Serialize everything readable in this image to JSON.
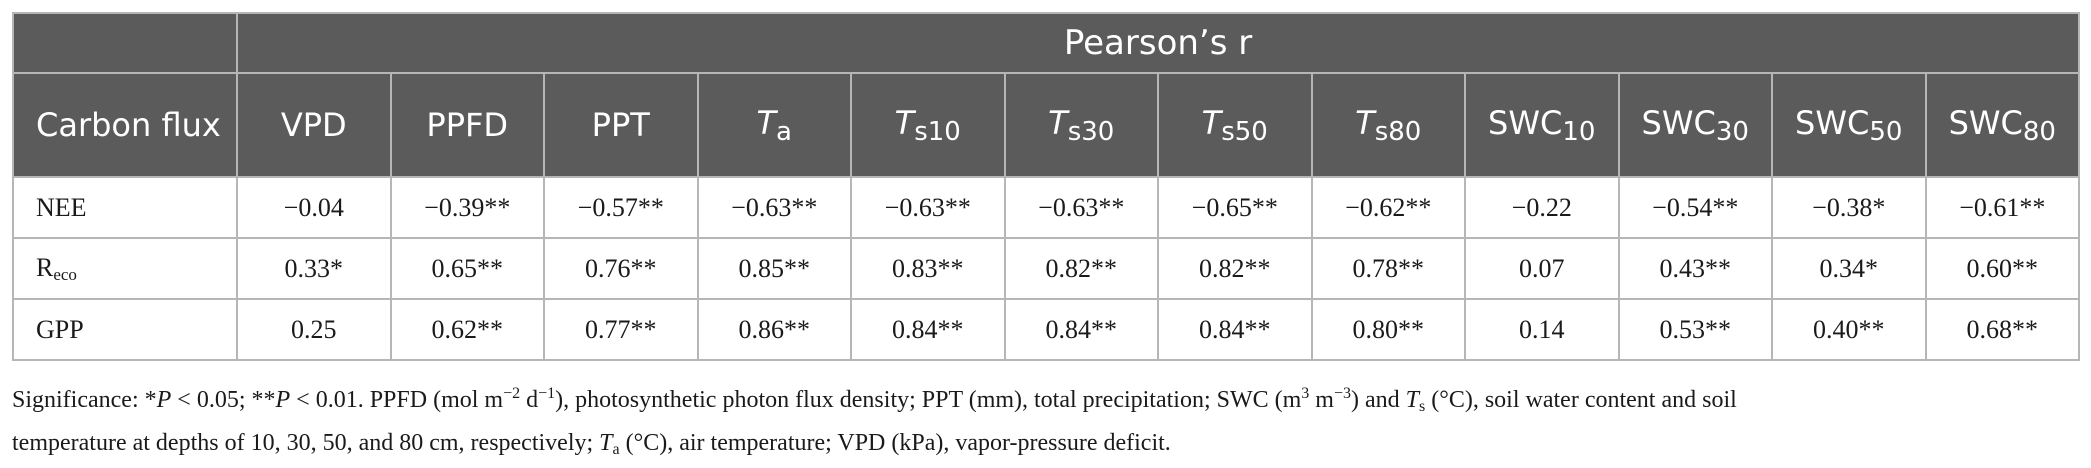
{
  "table": {
    "group_header": "Pearson’s r",
    "row_header": "Carbon flux",
    "columns": [
      {
        "base": "VPD",
        "sub": "",
        "italic": false
      },
      {
        "base": "PPFD",
        "sub": "",
        "italic": false
      },
      {
        "base": "PPT",
        "sub": "",
        "italic": false
      },
      {
        "base": "T",
        "sub": "a",
        "italic": true
      },
      {
        "base": "T",
        "sub": "s10",
        "italic": true
      },
      {
        "base": "T",
        "sub": "s30",
        "italic": true
      },
      {
        "base": "T",
        "sub": "s50",
        "italic": true
      },
      {
        "base": "T",
        "sub": "s80",
        "italic": true
      },
      {
        "base": "SWC",
        "sub": "10",
        "italic": false
      },
      {
        "base": "SWC",
        "sub": "30",
        "italic": false
      },
      {
        "base": "SWC",
        "sub": "50",
        "italic": false
      },
      {
        "base": "SWC",
        "sub": "80",
        "italic": false
      }
    ],
    "rows": [
      {
        "label": "NEE",
        "label_sub": "",
        "values": [
          "−0.04",
          "−0.39**",
          "−0.57**",
          "−0.63**",
          "−0.63**",
          "−0.63**",
          "−0.65**",
          "−0.62**",
          "−0.22",
          "−0.54**",
          "−0.38*",
          "−0.61**"
        ]
      },
      {
        "label": "R",
        "label_sub": "eco",
        "values": [
          "0.33*",
          "0.65**",
          "0.76**",
          "0.85**",
          "0.83**",
          "0.82**",
          "0.82**",
          "0.78**",
          "0.07",
          "0.43**",
          "0.34*",
          "0.60**"
        ]
      },
      {
        "label": "GPP",
        "label_sub": "",
        "values": [
          "0.25",
          "0.62**",
          "0.77**",
          "0.86**",
          "0.84**",
          "0.84**",
          "0.84**",
          "0.80**",
          "0.14",
          "0.53**",
          "0.40**",
          "0.68**"
        ]
      }
    ]
  },
  "footnote": {
    "line1": [
      {
        "t": "Significance: *",
        "i": false
      },
      {
        "t": "P",
        "i": true
      },
      {
        "t": " < 0.05; **",
        "i": false
      },
      {
        "t": "P",
        "i": true
      },
      {
        "t": " < 0.01. PPFD (mol m",
        "i": false
      },
      {
        "t": "−2",
        "i": false,
        "sup": true
      },
      {
        "t": " d",
        "i": false
      },
      {
        "t": "−1",
        "i": false,
        "sup": true
      },
      {
        "t": "), photosynthetic photon flux density; PPT (mm), total precipitation; SWC (m",
        "i": false
      },
      {
        "t": "3",
        "i": false,
        "sup": true
      },
      {
        "t": " m",
        "i": false
      },
      {
        "t": "−3",
        "i": false,
        "sup": true
      },
      {
        "t": ") and ",
        "i": false
      },
      {
        "t": "T",
        "i": true
      },
      {
        "t": "s",
        "i": false,
        "sub": true
      },
      {
        "t": " (°C), soil water content and soil",
        "i": false
      }
    ],
    "line2": [
      {
        "t": "temperature at depths of 10, 30, 50, and 80 cm, respectively; ",
        "i": false
      },
      {
        "t": "T",
        "i": true
      },
      {
        "t": "a",
        "i": false,
        "sub": true
      },
      {
        "t": " (°C), air temperature; VPD (kPa), vapor-pressure deficit.",
        "i": false
      }
    ]
  }
}
